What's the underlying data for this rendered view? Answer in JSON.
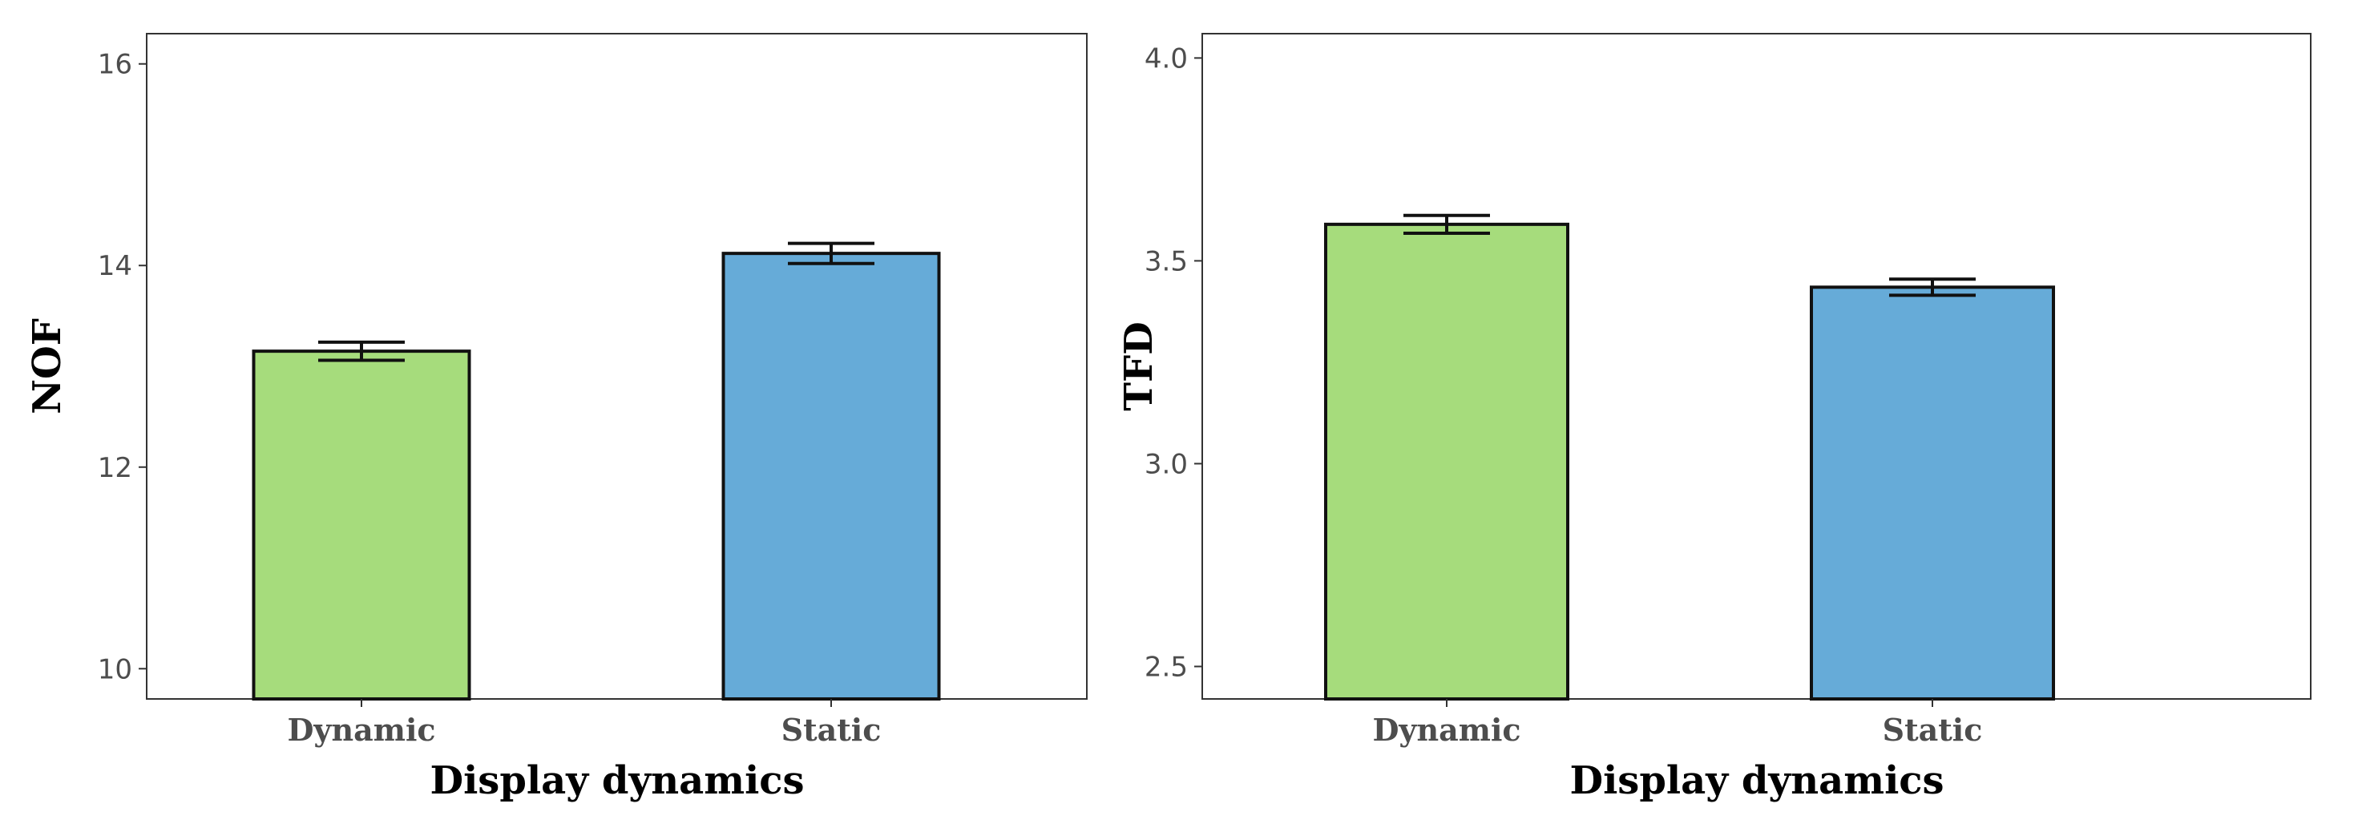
{
  "chart_data": [
    {
      "type": "bar",
      "categories": [
        "Dynamic",
        "Static"
      ],
      "values": [
        13.15,
        14.12
      ],
      "error": [
        0.09,
        0.1
      ],
      "colors": [
        "#a6dc7c",
        "#66abd8"
      ],
      "xlabel": "Display dynamics",
      "ylabel": "NOF",
      "ylim": [
        9.7,
        16.3
      ],
      "yticks": [
        "10",
        "12",
        "14",
        "16"
      ],
      "grid": false
    },
    {
      "type": "bar",
      "categories": [
        "Dynamic",
        "Static"
      ],
      "values": [
        3.59,
        3.435
      ],
      "error": [
        0.022,
        0.02
      ],
      "colors": [
        "#a6dc7c",
        "#66abd8"
      ],
      "xlabel": "Display dynamics",
      "ylabel": "TFD",
      "ylim": [
        2.42,
        4.06
      ],
      "yticks": [
        "2.5",
        "3.0",
        "3.5",
        "4.0"
      ],
      "grid": false
    }
  ]
}
